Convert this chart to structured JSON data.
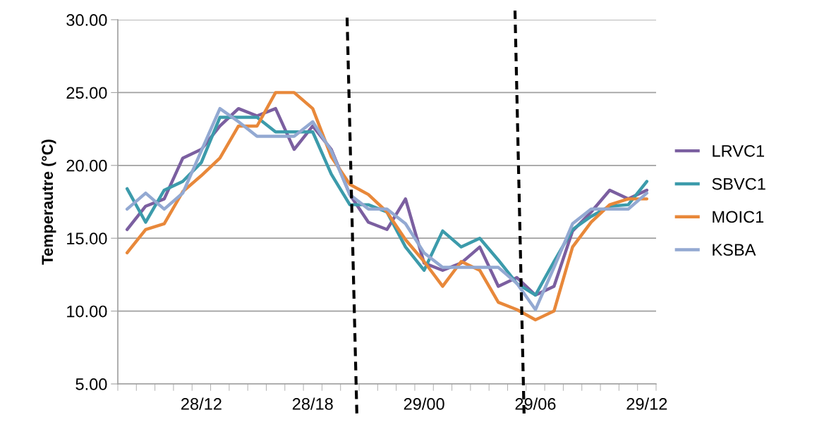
{
  "chart_data": {
    "type": "line",
    "ylabel": "Temperautre (°C)",
    "categories": [
      null,
      null,
      null,
      null,
      "28/12",
      null,
      null,
      null,
      null,
      null,
      "28/18",
      null,
      null,
      null,
      null,
      null,
      "29/00",
      null,
      null,
      null,
      null,
      null,
      "29/06",
      null,
      null,
      null,
      null,
      null,
      "29/12"
    ],
    "series": [
      {
        "name": "LRVC1",
        "color": "#7b5fa0",
        "values": [
          15.6,
          17.2,
          17.7,
          20.5,
          21.1,
          22.7,
          23.9,
          23.4,
          23.9,
          21.1,
          22.7,
          21.1,
          18.0,
          16.1,
          15.6,
          17.7,
          13.3,
          12.8,
          13.3,
          14.4,
          11.7,
          12.3,
          11.1,
          11.7,
          15.5,
          16.8,
          18.3,
          17.7,
          18.3
        ]
      },
      {
        "name": "SBVC1",
        "color": "#3c9bab",
        "values": [
          18.4,
          16.1,
          18.3,
          18.9,
          20.2,
          23.3,
          23.3,
          23.3,
          22.3,
          22.3,
          22.3,
          19.4,
          17.3,
          17.3,
          16.8,
          14.4,
          12.8,
          15.5,
          14.4,
          15.0,
          13.5,
          11.9,
          11.1,
          13.4,
          15.6,
          16.5,
          17.2,
          17.3,
          18.9
        ]
      },
      {
        "name": "MOIC1",
        "color": "#e8883a",
        "values": [
          14.0,
          15.6,
          16.0,
          18.2,
          19.3,
          20.5,
          22.7,
          22.7,
          25.0,
          25.0,
          23.9,
          20.6,
          18.7,
          18.0,
          16.8,
          14.9,
          13.4,
          11.7,
          13.4,
          12.8,
          10.6,
          10.1,
          9.4,
          10.0,
          14.4,
          16.1,
          17.3,
          17.7,
          17.7
        ]
      },
      {
        "name": "KSBA",
        "color": "#93a9d2",
        "values": [
          17.0,
          18.1,
          17.0,
          18.1,
          21.0,
          23.9,
          23.0,
          22.0,
          22.0,
          22.0,
          23.0,
          21.0,
          18.0,
          17.0,
          17.0,
          16.0,
          14.0,
          13.0,
          13.0,
          13.0,
          13.0,
          11.9,
          10.1,
          13.0,
          16.0,
          17.0,
          17.0,
          17.0,
          18.1
        ]
      }
    ],
    "ylim": [
      5,
      30
    ],
    "yticks": [
      {
        "value": 5,
        "label": "5.00"
      },
      {
        "value": 10,
        "label": "10.00"
      },
      {
        "value": 15,
        "label": "15.00"
      },
      {
        "value": 20,
        "label": "20.00"
      },
      {
        "value": 25,
        "label": "25.00"
      },
      {
        "value": 30,
        "label": "30.00"
      }
    ],
    "grid": "y",
    "legend": "right",
    "marker": "none",
    "line_style": "solid"
  }
}
